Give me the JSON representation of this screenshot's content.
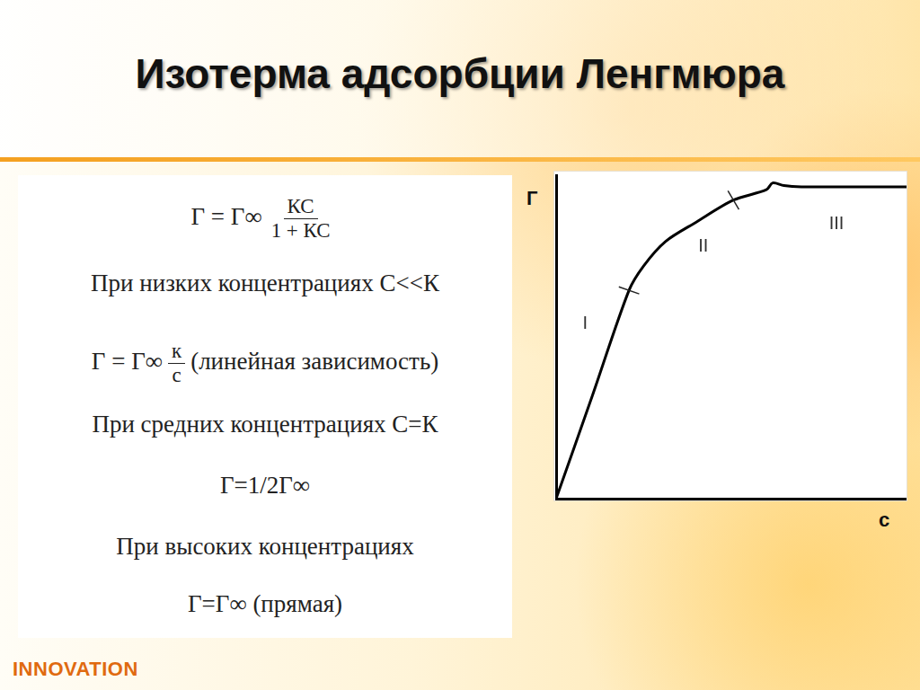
{
  "title": "Изотерма адсорбции Ленгмюра",
  "footer": "INNOVATION",
  "text_panel": {
    "lines": [
      {
        "parts": [
          "Г = Г∞",
          {
            "num": "КС",
            "den": "1 + КС"
          }
        ]
      },
      {
        "parts": [
          "При низких концентрациях  С<<К"
        ]
      },
      {
        "parts": [
          "Г = Г∞",
          {
            "num": "к",
            "den": "с"
          },
          "(линейная зависимость)"
        ]
      },
      {
        "parts": [
          "При средних концентрациях  С=К"
        ]
      },
      {
        "parts": [
          "Г=1/2Г∞"
        ]
      },
      {
        "parts": [
          "При высоких концентрациях"
        ]
      },
      {
        "parts": [
          "Г=Г∞   (прямая)"
        ]
      }
    ]
  },
  "chart_data": {
    "type": "line",
    "xlabel": "с",
    "ylabel": "Г",
    "x": [
      0,
      10.4,
      20.8,
      25,
      31.2,
      40,
      50.6,
      60,
      61.8,
      65,
      70,
      80,
      100
    ],
    "values": [
      0,
      32,
      64.4,
      72,
      79.5,
      85.5,
      92.3,
      95.5,
      97.6,
      96.8,
      96.4,
      96.4,
      96.4
    ],
    "color": "#000000",
    "xlim": [
      0,
      100
    ],
    "ylim": [
      0,
      100
    ],
    "grid": false,
    "tick_labels": false,
    "annotations": [
      {
        "text": "I",
        "x": 8.3,
        "y": 54
      },
      {
        "text": "II",
        "x": 42,
        "y": 78
      },
      {
        "text": "III",
        "x": 80,
        "y": 85
      }
    ],
    "boundaries": [
      20.8,
      50.6
    ]
  }
}
